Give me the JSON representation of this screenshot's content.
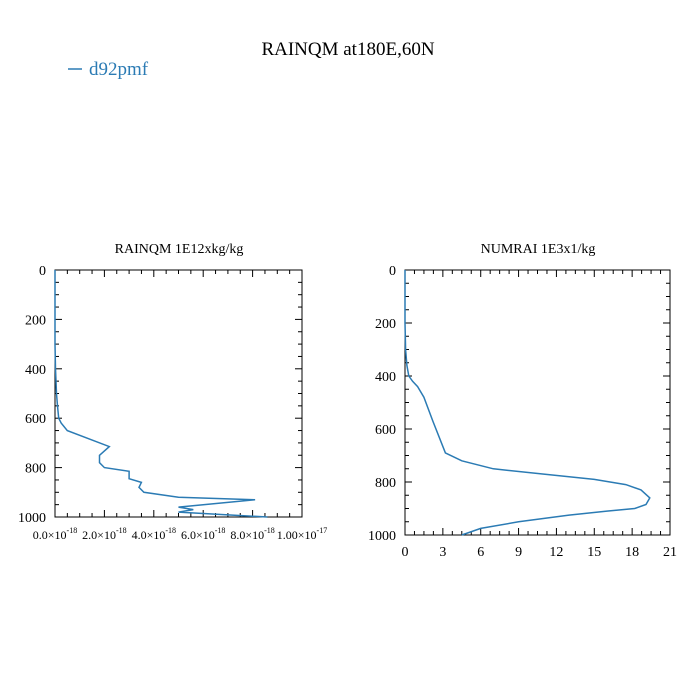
{
  "title": "RAINQM at180E,60N",
  "legend": {
    "label": "d92pmf",
    "color": "#2b7bb4"
  },
  "chart_data": [
    {
      "type": "line",
      "title": "RAINQM  1E12xkg/kg",
      "ylim": [
        1000,
        0
      ],
      "xlim": [
        0,
        1e-17
      ],
      "yticks": [
        "0",
        "200",
        "400",
        "600",
        "800",
        "1000"
      ],
      "xticks": [
        {
          "base": "0.0×10",
          "exp": "-18"
        },
        {
          "base": "2.0×10",
          "exp": "-18"
        },
        {
          "base": "4.0×10",
          "exp": "-18"
        },
        {
          "base": "6.0×10",
          "exp": "-18"
        },
        {
          "base": "8.0×10",
          "exp": "-18"
        },
        {
          "base": "1.00×10",
          "exp": "-17"
        }
      ],
      "series": [
        {
          "name": "d92pmf",
          "x": [
            0,
            0,
            2e-20,
            6e-20,
            1e-19,
            1.5e-19,
            2.5e-19,
            5e-19,
            2.2e-18,
            1.8e-18,
            1.8e-18,
            2e-18,
            3e-18,
            3e-18,
            3.5e-18,
            3.4e-18,
            3.6e-18,
            5e-18,
            8.1e-18,
            5e-18,
            5.6e-18,
            5e-18,
            8.6e-18
          ],
          "y": [
            0,
            300,
            400,
            500,
            550,
            600,
            620,
            650,
            715,
            750,
            780,
            800,
            815,
            845,
            860,
            880,
            900,
            920,
            930,
            960,
            970,
            980,
            1000
          ]
        }
      ]
    },
    {
      "type": "line",
      "title": "NUMRAI  1E3x1/kg",
      "ylim": [
        1000,
        0
      ],
      "xlim": [
        0,
        21
      ],
      "yticks": [
        "0",
        "200",
        "400",
        "600",
        "800",
        "1000"
      ],
      "xticks": [
        "0",
        "3",
        "6",
        "9",
        "12",
        "15",
        "18",
        "21"
      ],
      "series": [
        {
          "name": "d92pmf",
          "x": [
            0,
            0,
            0.05,
            0.15,
            0.3,
            0.6,
            1.0,
            1.5,
            2.2,
            3.2,
            4.5,
            7.0,
            11.0,
            15.0,
            17.5,
            18.7,
            19.4,
            19.1,
            18.2,
            16.0,
            13.0,
            9.0,
            6.0,
            4.5
          ],
          "y": [
            0,
            200,
            300,
            360,
            400,
            420,
            440,
            480,
            570,
            690,
            720,
            750,
            770,
            790,
            810,
            830,
            860,
            885,
            900,
            910,
            925,
            950,
            975,
            1000
          ]
        }
      ]
    }
  ]
}
